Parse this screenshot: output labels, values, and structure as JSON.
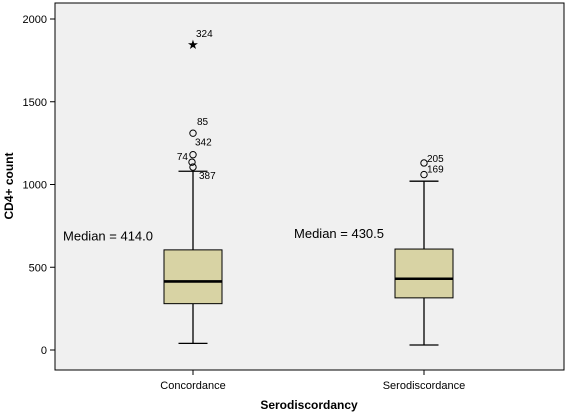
{
  "chart_data": {
    "type": "box",
    "xlabel": "Serodiscordancy",
    "ylabel": "CD4+ count",
    "ylim": [
      -60,
      2080
    ],
    "yticks": [
      0,
      500,
      1000,
      1500,
      2000
    ],
    "grid": false,
    "colors": {
      "plot_bg": "#f0f0f0",
      "box_fill": "#d8d3a4",
      "stroke": "#000000"
    },
    "categories": [
      "Concordance",
      "Serodiscordance"
    ],
    "groups": [
      {
        "name": "Concordance",
        "whisker_low": 40,
        "q1": 280,
        "median": 414.0,
        "q3": 605,
        "whisker_high": 1080,
        "median_label": "Median = 414.0",
        "outliers": [
          {
            "id": "324",
            "value": 1850,
            "marker": "star"
          },
          {
            "id": "85",
            "value": 1310,
            "marker": "circle"
          },
          {
            "id": "342",
            "value": 1180,
            "marker": "circle"
          },
          {
            "id": "74",
            "value": 1135,
            "marker": "circle"
          },
          {
            "id": "387",
            "value": 1105,
            "marker": "circle"
          }
        ]
      },
      {
        "name": "Serodiscordance",
        "whisker_low": 30,
        "q1": 315,
        "median": 430.5,
        "q3": 610,
        "whisker_high": 1020,
        "median_label": "Median = 430.5",
        "outliers": [
          {
            "id": "205",
            "value": 1130,
            "marker": "circle"
          },
          {
            "id": "169",
            "value": 1060,
            "marker": "circle"
          }
        ]
      }
    ]
  }
}
